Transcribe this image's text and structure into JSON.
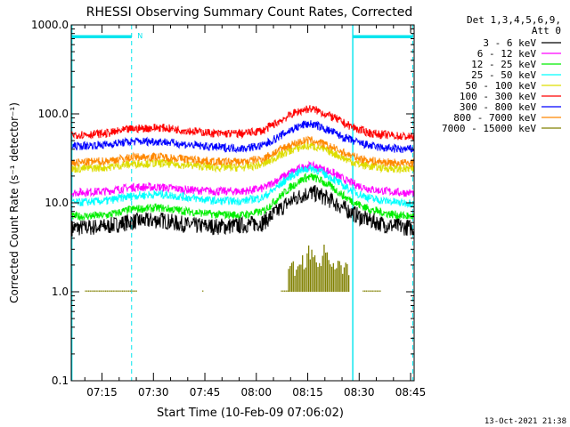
{
  "chart_data": {
    "type": "line",
    "title": "RHESSI Observing Summary Count Rates, Corrected",
    "xlabel": "Start Time (10-Feb-09 07:06:02)",
    "ylabel": "Corrected Count Rate (s⁻¹ detector⁻¹)",
    "y_scale": "log",
    "ylim": [
      0.1,
      1000
    ],
    "y_ticks": [
      "0.1",
      "1.0",
      "10.0",
      "100.0",
      "1000.0"
    ],
    "xlim_minutes": [
      0,
      100
    ],
    "x_ticks": [
      {
        "label": "07:15",
        "minute": 8.97
      },
      {
        "label": "07:30",
        "minute": 23.97
      },
      {
        "label": "07:45",
        "minute": 38.97
      },
      {
        "label": "08:00",
        "minute": 53.97
      },
      {
        "label": "08:15",
        "minute": 68.97
      },
      {
        "label": "08:30",
        "minute": 83.97
      },
      {
        "label": "08:45",
        "minute": 98.97
      }
    ],
    "legend_header": [
      "Det 1,3,4,5,6,9,",
      "Att 0"
    ],
    "legend_position": "right",
    "series": [
      {
        "name": "3 - 6 keV",
        "color": "#000000",
        "x": [
          0,
          10,
          18,
          26,
          34,
          42,
          50,
          56,
          60,
          64,
          68,
          70,
          72,
          76,
          80,
          84,
          88,
          92,
          96,
          100
        ],
        "y": [
          5.2,
          5.4,
          6.2,
          6.4,
          5.6,
          5.4,
          5.6,
          6.0,
          8.0,
          10.5,
          12.5,
          13.0,
          12.5,
          10.5,
          8.5,
          7.0,
          6.2,
          5.6,
          5.4,
          5.2
        ]
      },
      {
        "name": "6 - 12 keV",
        "color": "#ff00ff",
        "x": [
          0,
          10,
          18,
          26,
          34,
          42,
          50,
          56,
          60,
          64,
          68,
          70,
          72,
          76,
          80,
          84,
          88,
          92,
          96,
          100
        ],
        "y": [
          13.0,
          13.5,
          15.0,
          15.0,
          14.0,
          13.5,
          13.5,
          14.5,
          18.0,
          22.0,
          25.5,
          26.0,
          25.0,
          22.0,
          18.0,
          15.5,
          14.0,
          13.5,
          13.0,
          13.0
        ]
      },
      {
        "name": "12 - 25 keV",
        "color": "#00ee00",
        "x": [
          0,
          10,
          18,
          26,
          34,
          42,
          50,
          56,
          60,
          64,
          68,
          70,
          72,
          76,
          80,
          84,
          88,
          92,
          96,
          100
        ],
        "y": [
          7.0,
          7.2,
          8.5,
          8.8,
          8.0,
          7.4,
          7.3,
          8.0,
          11.0,
          15.0,
          19.0,
          19.5,
          18.5,
          15.0,
          11.5,
          9.5,
          8.2,
          7.6,
          7.2,
          7.0
        ]
      },
      {
        "name": "25 - 50 keV",
        "color": "#00ffff",
        "x": [
          0,
          10,
          18,
          26,
          34,
          42,
          50,
          56,
          60,
          64,
          68,
          70,
          72,
          76,
          80,
          84,
          88,
          92,
          96,
          100
        ],
        "y": [
          10.0,
          10.5,
          12.0,
          12.5,
          11.5,
          10.5,
          10.5,
          11.5,
          15.0,
          20.0,
          24.0,
          24.5,
          23.0,
          19.0,
          15.0,
          12.5,
          11.0,
          10.5,
          10.0,
          10.0
        ]
      },
      {
        "name": "50 - 100 keV",
        "color": "#dddd00",
        "x": [
          0,
          10,
          18,
          26,
          34,
          42,
          50,
          56,
          60,
          64,
          68,
          70,
          72,
          76,
          80,
          84,
          88,
          92,
          96,
          100
        ],
        "y": [
          24.0,
          25.0,
          27.5,
          28.0,
          26.5,
          25.0,
          25.0,
          27.0,
          33.0,
          39.0,
          43.0,
          43.5,
          42.0,
          37.0,
          31.0,
          27.0,
          25.5,
          24.5,
          24.0,
          24.0
        ]
      },
      {
        "name": "100 - 300 keV",
        "color": "#ff0000",
        "x": [
          0,
          10,
          18,
          26,
          34,
          42,
          50,
          56,
          60,
          64,
          68,
          70,
          72,
          76,
          80,
          84,
          88,
          92,
          96,
          100
        ],
        "y": [
          58.0,
          60.0,
          68.0,
          70.0,
          65.0,
          60.0,
          60.0,
          65.0,
          80.0,
          98.0,
          112.0,
          114.0,
          108.0,
          93.0,
          77.0,
          66.0,
          60.0,
          58.0,
          56.0,
          55.0
        ]
      },
      {
        "name": "300 - 800 keV",
        "color": "#0000ff",
        "x": [
          0,
          10,
          18,
          26,
          34,
          42,
          50,
          56,
          60,
          64,
          68,
          70,
          72,
          76,
          80,
          84,
          88,
          92,
          96,
          100
        ],
        "y": [
          43.0,
          45.0,
          49.0,
          49.0,
          45.0,
          42.0,
          41.0,
          44.0,
          54.0,
          66.0,
          76.0,
          77.0,
          73.0,
          63.0,
          53.0,
          47.0,
          43.0,
          41.0,
          40.0,
          40.0
        ]
      },
      {
        "name": "800 - 7000 keV",
        "color": "#ff8800",
        "x": [
          0,
          10,
          18,
          26,
          34,
          42,
          50,
          56,
          60,
          64,
          68,
          70,
          72,
          76,
          80,
          84,
          88,
          92,
          96,
          100
        ],
        "y": [
          28.0,
          29.5,
          32.5,
          33.0,
          31.0,
          29.0,
          29.0,
          31.5,
          38.0,
          45.0,
          50.0,
          50.5,
          48.0,
          42.0,
          36.0,
          31.5,
          29.5,
          28.5,
          28.0,
          28.0
        ]
      },
      {
        "name": "7000 - 15000 keV",
        "color": "#808000",
        "x": [
          4,
          15,
          25,
          38,
          62,
          64,
          66,
          68,
          70,
          72,
          74,
          76,
          78,
          80,
          90
        ],
        "y": [
          1.0,
          1.0,
          1.0,
          1.0,
          1.0,
          1.8,
          1.9,
          2.3,
          2.8,
          2.2,
          2.8,
          2.3,
          1.9,
          1.8,
          1.0
        ]
      }
    ],
    "saa_marker_label": "N",
    "footer_date": "13-Oct-2021 21:38"
  },
  "colors": {
    "night_bar": "#00e5ee",
    "axis": "#000000",
    "background": "#ffffff"
  }
}
